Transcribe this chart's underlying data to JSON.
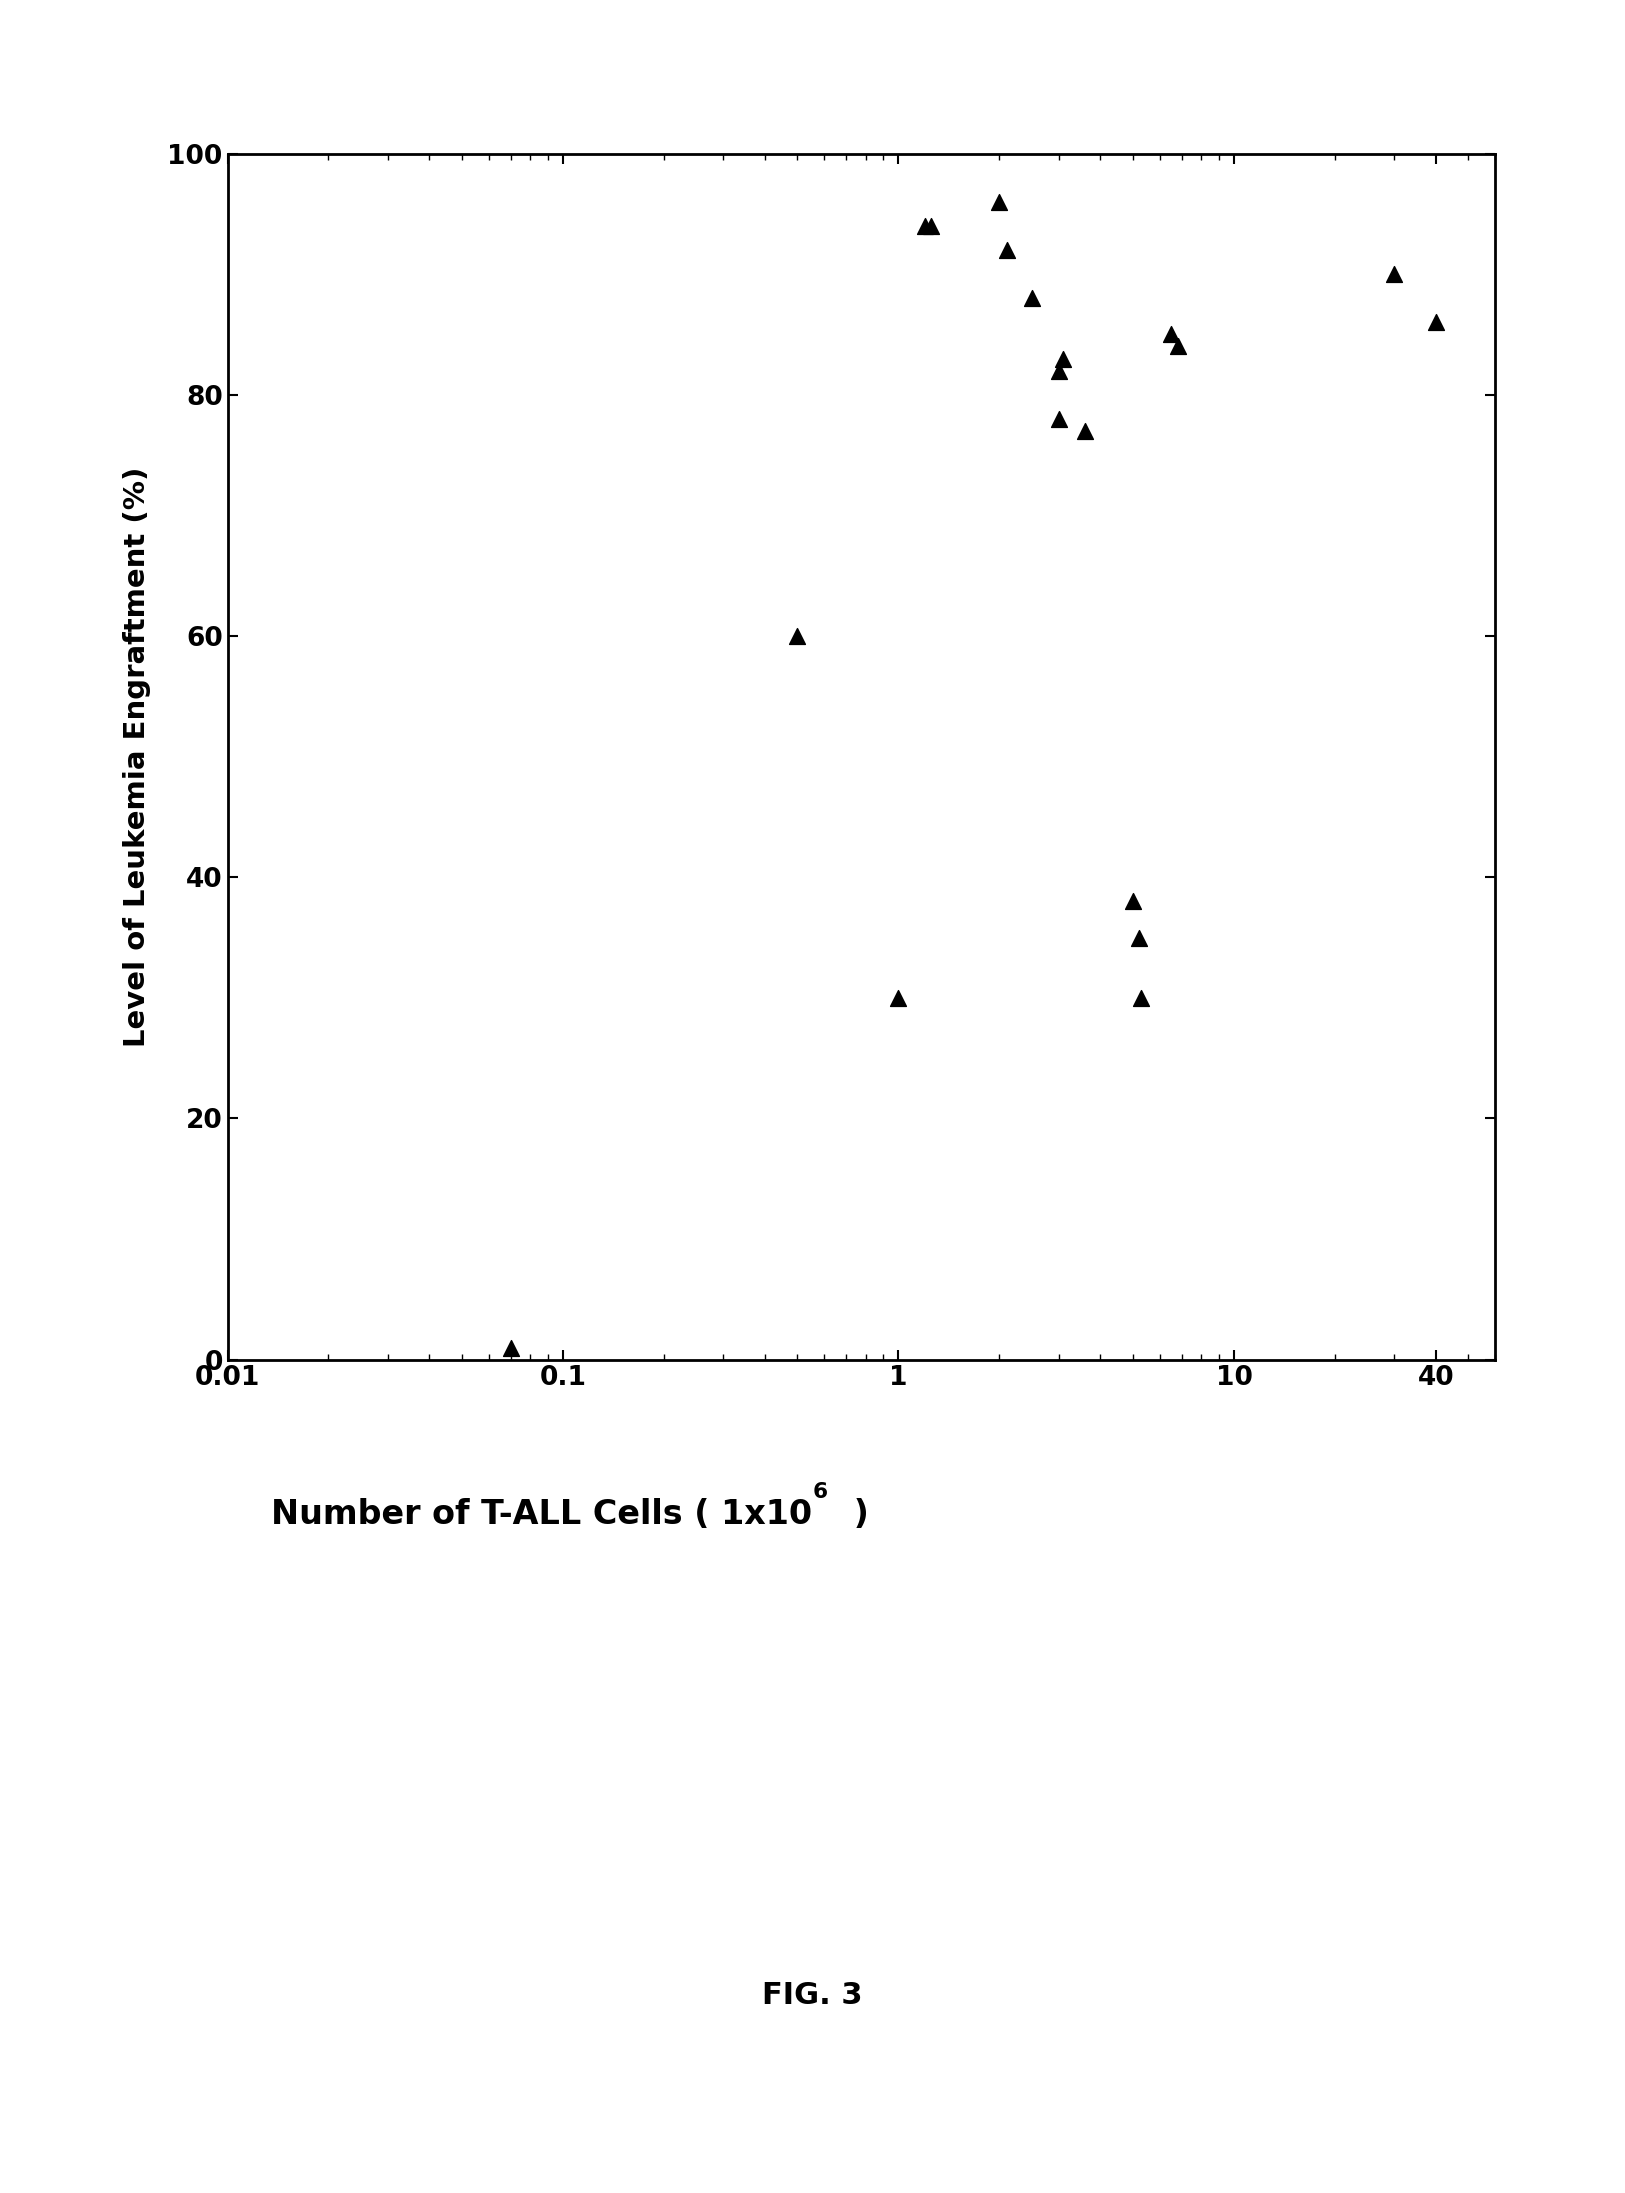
{
  "x_data": [
    0.07,
    0.5,
    1.0,
    1.2,
    1.25,
    2.0,
    2.1,
    2.5,
    3.0,
    3.1,
    3.0,
    3.6,
    5.0,
    5.2,
    5.3,
    6.5,
    6.8,
    30.0,
    40.0
  ],
  "y_data": [
    1,
    60,
    30,
    94,
    94,
    96,
    92,
    88,
    82,
    83,
    78,
    77,
    38,
    35,
    30,
    85,
    84,
    90,
    86
  ],
  "ylabel": "Level of Leukemia Engraftment (%)",
  "fig_label": "FIG. 3",
  "xlim": [
    0.01,
    60
  ],
  "ylim": [
    0,
    100
  ],
  "yticks": [
    0,
    20,
    40,
    60,
    80,
    100
  ],
  "ytick_labels": [
    "0",
    "20",
    "40",
    "60",
    "80",
    "100"
  ],
  "xticks": [
    0.01,
    0.1,
    1,
    10,
    40
  ],
  "xtick_labels": [
    "0.01",
    "0.1",
    "1",
    "10",
    "40"
  ],
  "marker_color": "#000000",
  "background_color": "#ffffff",
  "marker_size": 130,
  "ylabel_fontsize": 21,
  "xlabel_fontsize": 24,
  "tick_fontsize": 19,
  "figlabel_fontsize": 22,
  "xlabel_main": "Number of T-ALL Cells ( 1x10",
  "xlabel_sup": "6",
  "xlabel_tail": " )"
}
